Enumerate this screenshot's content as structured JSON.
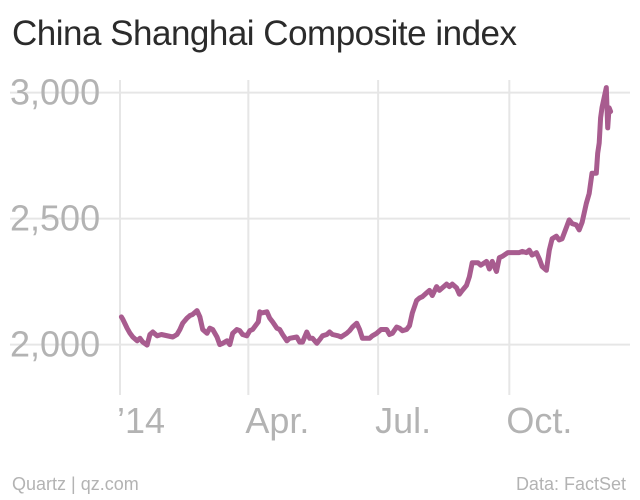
{
  "chart_data": {
    "type": "line",
    "title": "China Shanghai Composite index",
    "xlabel": "",
    "ylabel": "",
    "ylim": [
      1800,
      3050
    ],
    "y_ticks": [
      2000,
      2500,
      3000
    ],
    "y_tick_labels": [
      "2,000",
      "2,500",
      "3,000"
    ],
    "x_ticks": [
      "2014-01-01",
      "2014-04-01",
      "2014-07-01",
      "2014-10-01"
    ],
    "x_tick_labels": [
      "’14",
      "Apr.",
      "Jul.",
      "Oct."
    ],
    "xlim": [
      "2014-01-01",
      "2014-12-12"
    ],
    "grid": true,
    "line_color": "#a85c8f",
    "series": [
      {
        "values": [
          [
            "2014-01-02",
            2110
          ],
          [
            "2014-01-03",
            2100
          ],
          [
            "2014-01-06",
            2065
          ],
          [
            "2014-01-08",
            2045
          ],
          [
            "2014-01-10",
            2030
          ],
          [
            "2014-01-13",
            2015
          ],
          [
            "2014-01-15",
            2025
          ],
          [
            "2014-01-17",
            2010
          ],
          [
            "2014-01-20",
            1998
          ],
          [
            "2014-01-22",
            2040
          ],
          [
            "2014-01-24",
            2050
          ],
          [
            "2014-01-27",
            2035
          ],
          [
            "2014-01-30",
            2040
          ],
          [
            "2014-02-07",
            2030
          ],
          [
            "2014-02-10",
            2040
          ],
          [
            "2014-02-12",
            2060
          ],
          [
            "2014-02-14",
            2085
          ],
          [
            "2014-02-17",
            2105
          ],
          [
            "2014-02-19",
            2115
          ],
          [
            "2014-02-21",
            2120
          ],
          [
            "2014-02-24",
            2135
          ],
          [
            "2014-02-26",
            2110
          ],
          [
            "2014-02-28",
            2060
          ],
          [
            "2014-03-03",
            2045
          ],
          [
            "2014-03-05",
            2065
          ],
          [
            "2014-03-07",
            2060
          ],
          [
            "2014-03-10",
            2030
          ],
          [
            "2014-03-12",
            2000
          ],
          [
            "2014-03-14",
            2005
          ],
          [
            "2014-03-17",
            2015
          ],
          [
            "2014-03-19",
            2000
          ],
          [
            "2014-03-21",
            2045
          ],
          [
            "2014-03-24",
            2060
          ],
          [
            "2014-03-26",
            2055
          ],
          [
            "2014-03-28",
            2040
          ],
          [
            "2014-03-31",
            2035
          ],
          [
            "2014-04-02",
            2055
          ],
          [
            "2014-04-04",
            2060
          ],
          [
            "2014-04-08",
            2090
          ],
          [
            "2014-04-09",
            2130
          ],
          [
            "2014-04-10",
            2125
          ],
          [
            "2014-04-14",
            2130
          ],
          [
            "2014-04-16",
            2105
          ],
          [
            "2014-04-18",
            2090
          ],
          [
            "2014-04-21",
            2065
          ],
          [
            "2014-04-23",
            2060
          ],
          [
            "2014-04-25",
            2040
          ],
          [
            "2014-04-28",
            2015
          ],
          [
            "2014-04-30",
            2025
          ],
          [
            "2014-05-05",
            2030
          ],
          [
            "2014-05-07",
            2010
          ],
          [
            "2014-05-09",
            2010
          ],
          [
            "2014-05-12",
            2050
          ],
          [
            "2014-05-14",
            2025
          ],
          [
            "2014-05-16",
            2025
          ],
          [
            "2014-05-19",
            2005
          ],
          [
            "2014-05-21",
            2020
          ],
          [
            "2014-05-23",
            2035
          ],
          [
            "2014-05-26",
            2040
          ],
          [
            "2014-05-28",
            2050
          ],
          [
            "2014-05-30",
            2040
          ],
          [
            "2014-06-03",
            2035
          ],
          [
            "2014-06-05",
            2030
          ],
          [
            "2014-06-09",
            2045
          ],
          [
            "2014-06-11",
            2055
          ],
          [
            "2014-06-13",
            2070
          ],
          [
            "2014-06-16",
            2085
          ],
          [
            "2014-06-18",
            2060
          ],
          [
            "2014-06-20",
            2025
          ],
          [
            "2014-06-23",
            2025
          ],
          [
            "2014-06-25",
            2025
          ],
          [
            "2014-06-27",
            2035
          ],
          [
            "2014-06-30",
            2045
          ],
          [
            "2014-07-03",
            2060
          ],
          [
            "2014-07-07",
            2060
          ],
          [
            "2014-07-09",
            2040
          ],
          [
            "2014-07-11",
            2045
          ],
          [
            "2014-07-14",
            2070
          ],
          [
            "2014-07-16",
            2065
          ],
          [
            "2014-07-18",
            2055
          ],
          [
            "2014-07-21",
            2060
          ],
          [
            "2014-07-23",
            2075
          ],
          [
            "2014-07-25",
            2125
          ],
          [
            "2014-07-28",
            2175
          ],
          [
            "2014-07-30",
            2185
          ],
          [
            "2014-08-01",
            2190
          ],
          [
            "2014-08-04",
            2205
          ],
          [
            "2014-08-06",
            2215
          ],
          [
            "2014-08-08",
            2195
          ],
          [
            "2014-08-11",
            2230
          ],
          [
            "2014-08-13",
            2215
          ],
          [
            "2014-08-15",
            2225
          ],
          [
            "2014-08-18",
            2240
          ],
          [
            "2014-08-20",
            2230
          ],
          [
            "2014-08-22",
            2240
          ],
          [
            "2014-08-25",
            2225
          ],
          [
            "2014-08-27",
            2200
          ],
          [
            "2014-08-29",
            2215
          ],
          [
            "2014-09-01",
            2235
          ],
          [
            "2014-09-03",
            2270
          ],
          [
            "2014-09-05",
            2325
          ],
          [
            "2014-09-09",
            2325
          ],
          [
            "2014-09-11",
            2315
          ],
          [
            "2014-09-15",
            2330
          ],
          [
            "2014-09-17",
            2300
          ],
          [
            "2014-09-19",
            2330
          ],
          [
            "2014-09-22",
            2290
          ],
          [
            "2014-09-24",
            2345
          ],
          [
            "2014-09-26",
            2350
          ],
          [
            "2014-09-30",
            2365
          ],
          [
            "2014-10-08",
            2365
          ],
          [
            "2014-10-10",
            2370
          ],
          [
            "2014-10-13",
            2365
          ],
          [
            "2014-10-15",
            2375
          ],
          [
            "2014-10-17",
            2355
          ],
          [
            "2014-10-20",
            2365
          ],
          [
            "2014-10-22",
            2340
          ],
          [
            "2014-10-24",
            2310
          ],
          [
            "2014-10-27",
            2295
          ],
          [
            "2014-10-29",
            2375
          ],
          [
            "2014-10-31",
            2420
          ],
          [
            "2014-11-03",
            2430
          ],
          [
            "2014-11-05",
            2415
          ],
          [
            "2014-11-07",
            2420
          ],
          [
            "2014-11-10",
            2465
          ],
          [
            "2014-11-12",
            2495
          ],
          [
            "2014-11-14",
            2480
          ],
          [
            "2014-11-17",
            2475
          ],
          [
            "2014-11-19",
            2455
          ],
          [
            "2014-11-21",
            2485
          ],
          [
            "2014-11-24",
            2560
          ],
          [
            "2014-11-26",
            2600
          ],
          [
            "2014-11-28",
            2680
          ],
          [
            "2014-12-01",
            2680
          ],
          [
            "2014-12-02",
            2760
          ],
          [
            "2014-12-03",
            2800
          ],
          [
            "2014-12-04",
            2900
          ],
          [
            "2014-12-05",
            2940
          ],
          [
            "2014-12-08",
            3020
          ],
          [
            "2014-12-09",
            2860
          ],
          [
            "2014-12-10",
            2940
          ],
          [
            "2014-12-11",
            2925
          ]
        ]
      }
    ]
  },
  "footer": {
    "source_left": "Quartz | qz.com",
    "source_right": "Data: FactSet"
  }
}
